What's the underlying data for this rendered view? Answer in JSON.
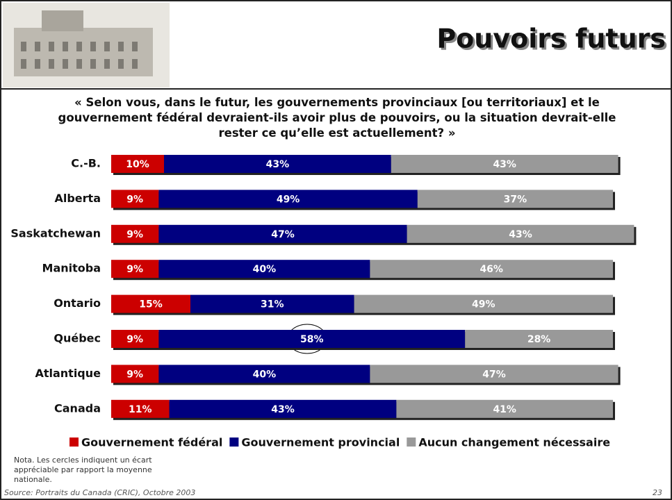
{
  "header": {
    "title": "Pouvoirs futurs"
  },
  "question": "« Selon vous, dans le futur, les gouvernements provinciaux [ou territoriaux] et le gouvernement fédéral devraient-ils avoir plus de pouvoirs, ou la situation devrait-elle rester ce qu’elle est actuellement? »",
  "chart_data": {
    "type": "bar",
    "orientation": "horizontal",
    "stacked": true,
    "categories": [
      "C.-B.",
      "Alberta",
      "Saskatchewan",
      "Manitoba",
      "Ontario",
      "Québec",
      "Atlantique",
      "Canada"
    ],
    "series": [
      {
        "name": "Gouvernement fédéral",
        "color": "#cc0000",
        "values": [
          10,
          9,
          9,
          9,
          15,
          9,
          9,
          11
        ],
        "value_labels": [
          "10%",
          "9%",
          "9%",
          "9%",
          "15%",
          "9%",
          "9%",
          "11%"
        ]
      },
      {
        "name": "Gouvernement provincial",
        "color": "#000080",
        "values": [
          43,
          49,
          47,
          40,
          31,
          58,
          40,
          43
        ],
        "value_labels": [
          "43%",
          "49%",
          "47%",
          "40%",
          "31%",
          "58%",
          "40%",
          "43%"
        ]
      },
      {
        "name": "Aucun changement nécessaire",
        "color": "#999999",
        "values": [
          43,
          37,
          43,
          46,
          49,
          28,
          47,
          41
        ],
        "value_labels": [
          "43%",
          "37%",
          "43%",
          "46%",
          "49%",
          "28%",
          "47%",
          "41%"
        ]
      }
    ],
    "legend": "bottom"
  },
  "note": "Nota. Les cercles indiquent un écart appréciable par rapport la moyenne nationale.",
  "source": "Source: Portraits du Canada (CRIC), Octobre 2003",
  "page_number": "23"
}
